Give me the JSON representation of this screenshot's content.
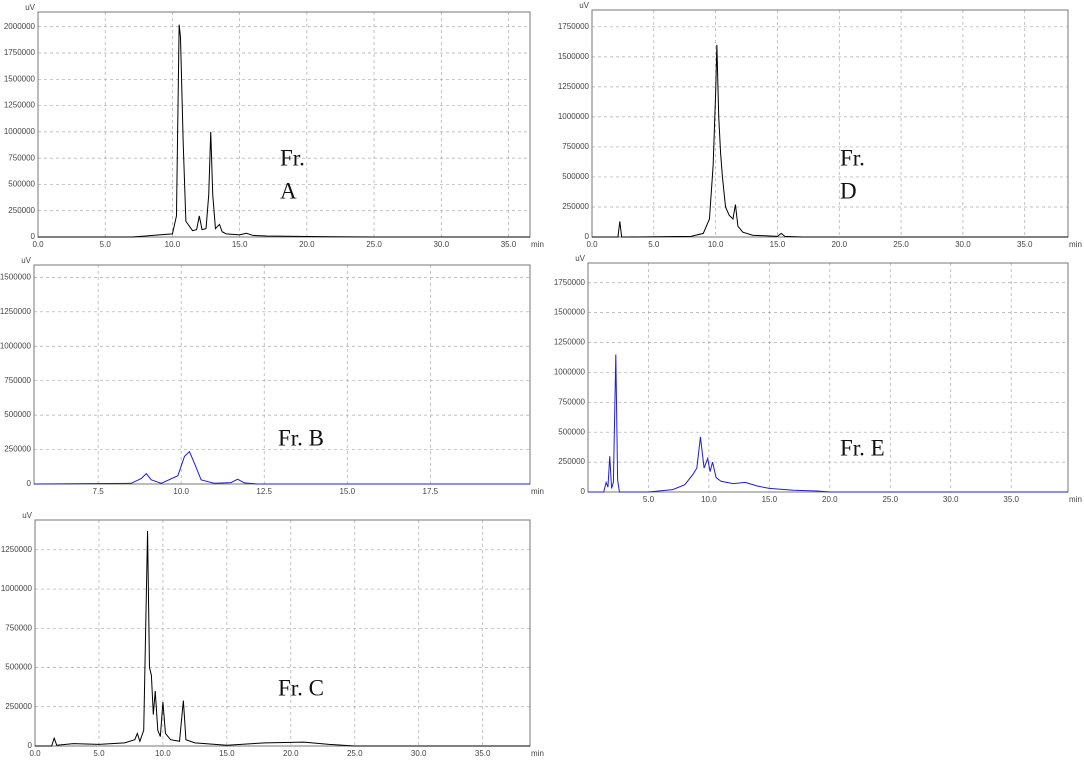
{
  "chart_data": [
    {
      "type": "line",
      "annotation": [
        "Fr.",
        "A"
      ],
      "ylabel": "uV",
      "xlabel": "min",
      "x": [
        0,
        7,
        8,
        9,
        10,
        10.3,
        10.5,
        10.6,
        10.8,
        11,
        11.5,
        11.8,
        12.0,
        12.2,
        12.5,
        12.7,
        12.85,
        13.0,
        13.2,
        13.5,
        13.7,
        14,
        15,
        15.5,
        16,
        17,
        20,
        22,
        25,
        36.6
      ],
      "series": [
        {
          "color": "#000000",
          "values": [
            0,
            0,
            10000,
            20000,
            30000,
            200000,
            2020000,
            1900000,
            900000,
            150000,
            60000,
            70000,
            200000,
            70000,
            80000,
            400000,
            1000000,
            400000,
            80000,
            120000,
            50000,
            30000,
            20000,
            35000,
            15000,
            10000,
            5000,
            2000,
            0,
            0
          ]
        }
      ],
      "xlim": [
        0,
        36.6
      ],
      "ylim": [
        0,
        2140000
      ],
      "xticks": [
        {
          "value": 0,
          "label": "0.0"
        },
        {
          "value": 5,
          "label": "5.0"
        },
        {
          "value": 10,
          "label": "10.0"
        },
        {
          "value": 15,
          "label": "15.0"
        },
        {
          "value": 20,
          "label": "20.0"
        },
        {
          "value": 25,
          "label": "25.0"
        },
        {
          "value": 30,
          "label": "30.0"
        },
        {
          "value": 35,
          "label": "35.0"
        }
      ],
      "yticks": [
        0,
        250000,
        500000,
        750000,
        1000000,
        1250000,
        1500000,
        1750000,
        2000000
      ],
      "grid": true
    },
    {
      "type": "line",
      "annotation": [
        "Fr. B"
      ],
      "ylabel": "uV",
      "xlabel": "min",
      "x": [
        5.57,
        8.5,
        8.8,
        8.95,
        9.1,
        9.4,
        9.9,
        10.1,
        10.25,
        10.4,
        10.6,
        11,
        11.5,
        11.7,
        11.9,
        12.3,
        20.5
      ],
      "series": [
        {
          "color": "#1f1fd0",
          "values": [
            0,
            5000,
            40000,
            75000,
            30000,
            5000,
            60000,
            200000,
            235000,
            150000,
            30000,
            5000,
            10000,
            35000,
            8000,
            0,
            0
          ]
        }
      ],
      "xlim": [
        5.57,
        20.5
      ],
      "ylim": [
        0,
        1590000
      ],
      "xticks": [
        7.5,
        {
          "value": 10,
          "label": "10.0"
        },
        12.5,
        {
          "value": 15,
          "label": "15.0"
        },
        17.5
      ],
      "yticks": [
        0,
        250000,
        500000,
        750000,
        1000000,
        1250000,
        1500000
      ],
      "grid": true
    },
    {
      "type": "line",
      "annotation": [
        "Fr. C"
      ],
      "ylabel": "uV",
      "xlabel": "min",
      "x": [
        0,
        1.3,
        1.5,
        1.7,
        3,
        5,
        7,
        7.8,
        8.0,
        8.2,
        8.5,
        8.8,
        8.95,
        9.1,
        9.25,
        9.4,
        9.6,
        9.8,
        10.0,
        10.2,
        10.6,
        11.3,
        11.6,
        11.8,
        12.5,
        15,
        18,
        21,
        23,
        25,
        38.7
      ],
      "series": [
        {
          "color": "#000000",
          "values": [
            0,
            0,
            50000,
            5000,
            15000,
            10000,
            20000,
            40000,
            80000,
            30000,
            100000,
            1370000,
            500000,
            450000,
            200000,
            350000,
            100000,
            60000,
            280000,
            80000,
            40000,
            30000,
            290000,
            40000,
            20000,
            5000,
            20000,
            25000,
            10000,
            0,
            0
          ]
        }
      ],
      "xlim": [
        0,
        38.7
      ],
      "ylim": [
        0,
        1440000
      ],
      "xticks": [
        {
          "value": 0,
          "label": "0.0"
        },
        {
          "value": 5,
          "label": "5.0"
        },
        {
          "value": 10,
          "label": "10.0"
        },
        {
          "value": 15,
          "label": "15.0"
        },
        {
          "value": 20,
          "label": "20.0"
        },
        {
          "value": 25,
          "label": "25.0"
        },
        {
          "value": 30,
          "label": "30.0"
        },
        {
          "value": 35,
          "label": "35.0"
        }
      ],
      "yticks": [
        0,
        250000,
        500000,
        750000,
        1000000,
        1250000
      ],
      "grid": true
    },
    {
      "type": "line",
      "annotation": [
        "Fr.",
        "D"
      ],
      "ylabel": "uV",
      "xlabel": "min",
      "x": [
        0,
        2.1,
        2.25,
        2.4,
        3,
        8,
        9,
        9.5,
        9.8,
        10.0,
        10.1,
        10.25,
        10.4,
        10.55,
        10.8,
        11.1,
        11.4,
        11.6,
        11.8,
        12.2,
        13,
        15,
        15.3,
        15.6,
        17,
        38.5
      ],
      "series": [
        {
          "color": "#000000",
          "values": [
            0,
            0,
            130000,
            0,
            0,
            5000,
            30000,
            150000,
            600000,
            1200000,
            1600000,
            1000000,
            700000,
            500000,
            250000,
            180000,
            150000,
            270000,
            90000,
            40000,
            15000,
            5000,
            30000,
            5000,
            0,
            0
          ]
        }
      ],
      "xlim": [
        0,
        38.5
      ],
      "ylim": [
        0,
        1890000
      ],
      "xticks": [
        {
          "value": 0,
          "label": "0.0"
        },
        {
          "value": 5,
          "label": "5.0"
        },
        {
          "value": 10,
          "label": "10.0"
        },
        {
          "value": 15,
          "label": "15.0"
        },
        {
          "value": 20,
          "label": "20.0"
        },
        {
          "value": 25,
          "label": "25.0"
        },
        {
          "value": 30,
          "label": "30.0"
        },
        {
          "value": 35,
          "label": "35.0"
        }
      ],
      "yticks": [
        0,
        250000,
        500000,
        750000,
        1000000,
        1250000,
        1500000,
        1750000
      ],
      "grid": true
    },
    {
      "type": "line",
      "annotation": [
        "Fr. E"
      ],
      "ylabel": "uV",
      "xlabel": "min",
      "x": [
        0,
        1.3,
        1.5,
        1.65,
        1.8,
        1.95,
        2.1,
        2.3,
        2.45,
        2.6,
        5,
        7,
        8,
        8.7,
        9.0,
        9.3,
        9.6,
        9.9,
        10.1,
        10.3,
        10.6,
        11,
        12,
        13,
        14,
        15,
        17,
        19,
        20,
        39.7
      ],
      "series": [
        {
          "color": "#1f1fd0",
          "values": [
            0,
            0,
            80000,
            40000,
            300000,
            30000,
            80000,
            1150000,
            100000,
            0,
            0,
            20000,
            60000,
            150000,
            200000,
            460000,
            200000,
            280000,
            170000,
            250000,
            120000,
            90000,
            70000,
            80000,
            50000,
            30000,
            15000,
            8000,
            0,
            0
          ]
        }
      ],
      "xlim": [
        0,
        39.7
      ],
      "ylim": [
        0,
        1915000
      ],
      "xticks": [
        {
          "value": 5,
          "label": "5.0"
        },
        {
          "value": 10,
          "label": "10.0"
        },
        {
          "value": 15,
          "label": "15.0"
        },
        {
          "value": 20,
          "label": "20.0"
        },
        {
          "value": 25,
          "label": "25.0"
        },
        {
          "value": 30,
          "label": "30.0"
        },
        {
          "value": 35,
          "label": "35.0"
        }
      ],
      "yticks": [
        0,
        250000,
        500000,
        750000,
        1000000,
        1250000,
        1500000,
        1750000
      ],
      "grid": true
    }
  ]
}
